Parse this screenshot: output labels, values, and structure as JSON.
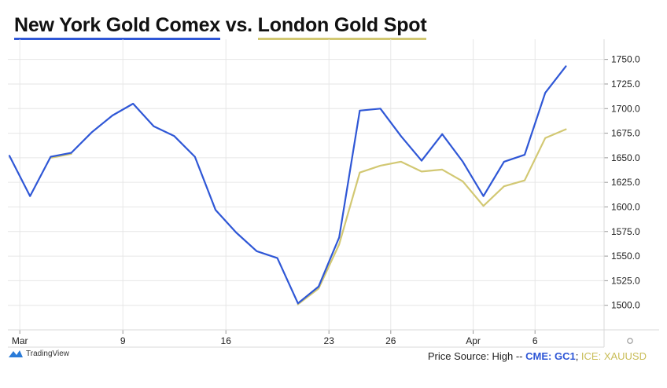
{
  "title": {
    "part1": "New York Gold Comex",
    "connector": "vs.",
    "part2": "London Gold Spot"
  },
  "brand": "TradingView",
  "footer": {
    "prefix": "Price Source: High -- ",
    "gc": "CME: GC1",
    "sep": "; ",
    "xau": "ICE: XAUUSD"
  },
  "colors": {
    "comex": "#2f57d6",
    "london": "#d2c873",
    "grid": "#e6e6e6",
    "axis": "#d9d9d9"
  },
  "chart_data": {
    "type": "line",
    "x_tick_labels": [
      "Mar",
      "9",
      "16",
      "23",
      "26",
      "Apr",
      "6"
    ],
    "x_tick_index": [
      1,
      6,
      11,
      16,
      19,
      23,
      26
    ],
    "ylim": [
      1475,
      1762.5
    ],
    "y_ticks": [
      "1500.0",
      "1525.0",
      "1550.0",
      "1575.0",
      "1600.0",
      "1625.0",
      "1650.0",
      "1675.0",
      "1700.0",
      "1725.0",
      "1750.0"
    ],
    "series": [
      {
        "key": "comex",
        "values": [
          1652,
          1611,
          1651,
          1655,
          1676,
          1693,
          1705,
          1682,
          1672,
          1651,
          1597,
          1574,
          1555,
          1548,
          1502,
          1519,
          1569,
          1698,
          1700,
          1672,
          1647,
          1674,
          1646,
          1611,
          1646,
          1653,
          1716,
          1743
        ]
      },
      {
        "key": "london",
        "values": [
          null,
          null,
          1650,
          1654,
          null,
          null,
          null,
          null,
          null,
          null,
          null,
          null,
          null,
          null,
          1501,
          1517,
          1562,
          1635,
          1642,
          1646,
          1636,
          1638,
          1626,
          1601,
          1621,
          1627,
          1670,
          1679
        ]
      }
    ]
  }
}
